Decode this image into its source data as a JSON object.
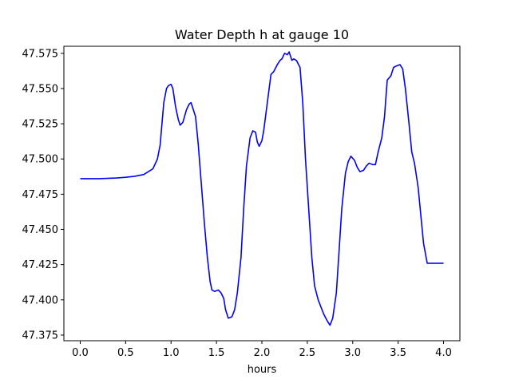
{
  "chart_data": {
    "type": "line",
    "title": "Water Depth h at gauge 10",
    "xlabel": "hours",
    "ylabel": "",
    "xlim": [
      -0.18,
      4.18
    ],
    "ylim": [
      47.371,
      47.58
    ],
    "xticks": [
      0.0,
      0.5,
      1.0,
      1.5,
      2.0,
      2.5,
      3.0,
      3.5,
      4.0
    ],
    "xtick_labels": [
      "0.0",
      "0.5",
      "1.0",
      "1.5",
      "2.0",
      "2.5",
      "3.0",
      "3.5",
      "4.0"
    ],
    "yticks": [
      47.375,
      47.4,
      47.425,
      47.45,
      47.475,
      47.5,
      47.525,
      47.55,
      47.575
    ],
    "ytick_labels": [
      "47.375",
      "47.400",
      "47.425",
      "47.450",
      "47.475",
      "47.500",
      "47.525",
      "47.550",
      "47.575"
    ],
    "grid": false,
    "series": [
      {
        "color": "#0000ff",
        "x": [
          0.0,
          0.2,
          0.4,
          0.5,
          0.6,
          0.7,
          0.8,
          0.85,
          0.88,
          0.9,
          0.92,
          0.95,
          0.97,
          1.0,
          1.02,
          1.05,
          1.08,
          1.1,
          1.13,
          1.17,
          1.2,
          1.22,
          1.24,
          1.27,
          1.3,
          1.33,
          1.37,
          1.4,
          1.43,
          1.45,
          1.48,
          1.52,
          1.55,
          1.58,
          1.6,
          1.63,
          1.67,
          1.7,
          1.73,
          1.77,
          1.8,
          1.83,
          1.87,
          1.9,
          1.93,
          1.95,
          1.97,
          2.0,
          2.02,
          2.04,
          2.07,
          2.1,
          2.13,
          2.17,
          2.2,
          2.22,
          2.25,
          2.28,
          2.3,
          2.33,
          2.35,
          2.38,
          2.42,
          2.45,
          2.48,
          2.52,
          2.55,
          2.58,
          2.62,
          2.65,
          2.68,
          2.72,
          2.75,
          2.78,
          2.82,
          2.85,
          2.88,
          2.92,
          2.95,
          2.98,
          3.02,
          3.05,
          3.08,
          3.12,
          3.15,
          3.18,
          3.22,
          3.25,
          3.28,
          3.32,
          3.35,
          3.38,
          3.42,
          3.45,
          3.48,
          3.52,
          3.55,
          3.58,
          3.62,
          3.65,
          3.68,
          3.72,
          3.75,
          3.78,
          3.82,
          3.85,
          3.88,
          3.92,
          3.95,
          3.98,
          4.0
        ],
        "y": [
          47.486,
          47.486,
          47.4865,
          47.487,
          47.4877,
          47.489,
          47.493,
          47.5,
          47.51,
          47.525,
          47.54,
          47.55,
          47.552,
          47.553,
          47.55,
          47.537,
          47.528,
          47.524,
          47.526,
          47.535,
          47.539,
          47.54,
          47.536,
          47.53,
          47.51,
          47.485,
          47.452,
          47.43,
          47.413,
          47.407,
          47.406,
          47.407,
          47.405,
          47.401,
          47.393,
          47.387,
          47.388,
          47.393,
          47.405,
          47.43,
          47.465,
          47.495,
          47.515,
          47.52,
          47.519,
          47.512,
          47.509,
          47.513,
          47.52,
          47.53,
          47.545,
          47.56,
          47.562,
          47.567,
          47.57,
          47.571,
          47.575,
          47.574,
          47.576,
          47.57,
          47.571,
          47.57,
          47.565,
          47.54,
          47.5,
          47.46,
          47.43,
          47.41,
          47.4,
          47.395,
          47.39,
          47.385,
          47.382,
          47.387,
          47.405,
          47.435,
          47.465,
          47.49,
          47.498,
          47.502,
          47.499,
          47.494,
          47.491,
          47.492,
          47.495,
          47.497,
          47.496,
          47.496,
          47.505,
          47.515,
          47.53,
          47.556,
          47.559,
          47.565,
          47.566,
          47.567,
          47.564,
          47.55,
          47.525,
          47.505,
          47.497,
          47.48,
          47.46,
          47.44,
          47.426,
          47.426,
          47.426,
          47.426,
          47.426,
          47.426,
          47.426
        ]
      }
    ]
  }
}
